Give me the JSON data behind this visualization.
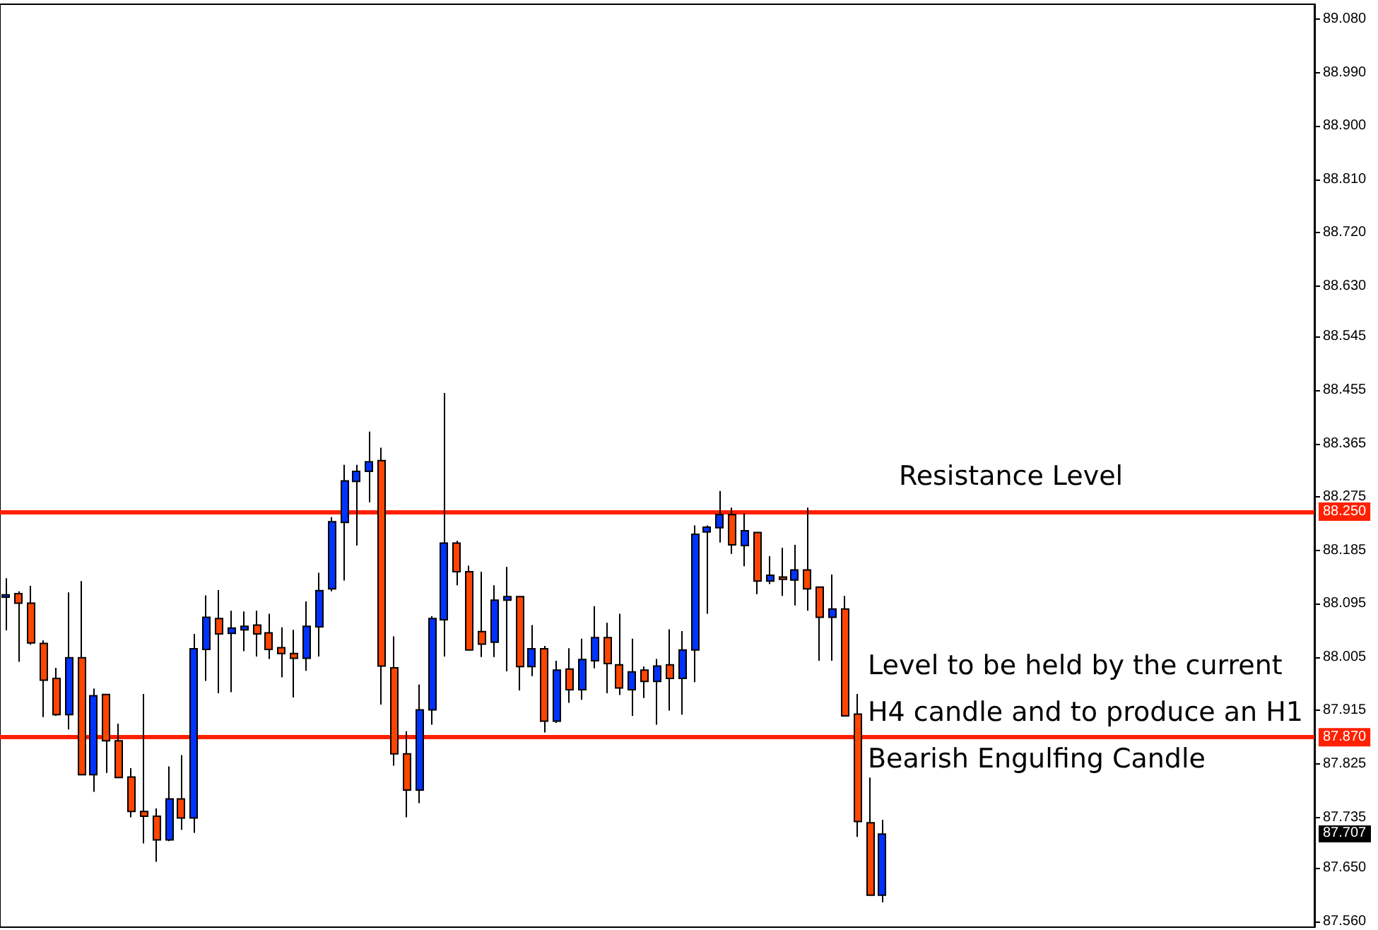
{
  "chart_data": {
    "type": "candlestick",
    "categories": [
      null,
      null,
      null,
      null,
      null,
      null,
      null,
      null,
      null,
      null,
      null,
      null,
      null,
      null,
      null,
      null,
      null,
      null,
      null,
      null,
      null,
      null,
      null,
      null,
      null,
      null,
      null,
      null,
      null,
      null,
      null,
      null,
      null,
      null,
      null,
      null,
      null,
      null,
      null,
      null,
      null,
      null,
      null,
      null,
      null,
      null,
      null,
      null,
      null,
      null,
      null,
      null,
      null,
      null,
      null,
      null,
      null,
      null,
      null,
      null,
      null,
      null,
      null,
      null,
      null,
      null,
      null,
      null,
      null,
      null,
      null,
      null,
      null,
      null,
      null,
      null,
      null,
      null,
      null,
      null,
      null,
      null,
      null,
      null,
      null,
      null,
      null,
      null,
      null,
      null,
      null,
      null,
      null,
      null,
      null,
      null,
      null,
      null,
      null,
      null,
      null,
      null,
      null,
      null,
      null
    ],
    "ohlc": [
      [
        88.106,
        88.138,
        88.05,
        88.11
      ],
      [
        88.112,
        88.116,
        87.997,
        88.096
      ],
      [
        88.096,
        88.125,
        88.026,
        88.029
      ],
      [
        88.028,
        88.033,
        87.904,
        87.966
      ],
      [
        87.969,
        87.987,
        87.906,
        87.908
      ],
      [
        87.908,
        88.114,
        87.883,
        88.004
      ],
      [
        88.004,
        88.133,
        87.807,
        87.807
      ],
      [
        87.807,
        87.952,
        87.778,
        87.94
      ],
      [
        87.942,
        87.942,
        87.81,
        87.864
      ],
      [
        87.864,
        87.893,
        87.802,
        87.802
      ],
      [
        87.803,
        87.818,
        87.735,
        87.745
      ],
      [
        87.745,
        87.943,
        87.691,
        87.737
      ],
      [
        87.737,
        87.75,
        87.66,
        87.697
      ],
      [
        87.697,
        87.821,
        87.695,
        87.766
      ],
      [
        87.766,
        87.84,
        87.714,
        87.734
      ],
      [
        87.734,
        88.044,
        87.709,
        88.019
      ],
      [
        88.018,
        88.109,
        87.965,
        88.072
      ],
      [
        88.07,
        88.118,
        87.944,
        88.044
      ],
      [
        88.045,
        88.083,
        87.946,
        88.054
      ],
      [
        88.051,
        88.082,
        88.015,
        88.057
      ],
      [
        88.059,
        88.083,
        88.006,
        88.044
      ],
      [
        88.046,
        88.078,
        88.002,
        88.018
      ],
      [
        88.021,
        88.055,
        87.971,
        88.011
      ],
      [
        88.011,
        88.051,
        87.937,
        88.003
      ],
      [
        88.003,
        88.099,
        87.982,
        88.057
      ],
      [
        88.056,
        88.147,
        88.006,
        88.117
      ],
      [
        88.12,
        88.241,
        88.116,
        88.233
      ],
      [
        88.232,
        88.329,
        88.134,
        88.302
      ],
      [
        88.301,
        88.329,
        88.193,
        88.318
      ],
      [
        88.318,
        88.385,
        88.266,
        88.334
      ],
      [
        88.336,
        88.358,
        87.925,
        87.99
      ],
      [
        87.987,
        88.04,
        87.822,
        87.842
      ],
      [
        87.842,
        87.88,
        87.735,
        87.781
      ],
      [
        87.781,
        87.959,
        87.759,
        87.916
      ],
      [
        87.916,
        88.074,
        87.891,
        88.07
      ],
      [
        88.068,
        88.45,
        88.006,
        88.197
      ],
      [
        88.197,
        88.201,
        88.126,
        88.149
      ],
      [
        88.149,
        88.159,
        88.017,
        88.017
      ],
      [
        88.048,
        88.149,
        88.005,
        88.027
      ],
      [
        88.03,
        88.126,
        88.005,
        88.101
      ],
      [
        88.101,
        88.157,
        87.981,
        88.107
      ],
      [
        88.107,
        88.107,
        87.949,
        87.989
      ],
      [
        87.989,
        88.059,
        87.973,
        88.019
      ],
      [
        88.019,
        88.024,
        87.878,
        87.897
      ],
      [
        87.897,
        87.999,
        87.894,
        87.983
      ],
      [
        87.985,
        88.02,
        87.928,
        87.95
      ],
      [
        87.95,
        88.036,
        87.933,
        88.001
      ],
      [
        87.999,
        88.091,
        87.986,
        88.038
      ],
      [
        88.038,
        88.063,
        87.944,
        87.994
      ],
      [
        87.992,
        88.078,
        87.941,
        87.953
      ],
      [
        87.95,
        88.036,
        87.906,
        87.98
      ],
      [
        87.983,
        87.989,
        87.936,
        87.964
      ],
      [
        87.964,
        88.002,
        87.891,
        87.99
      ],
      [
        87.992,
        88.052,
        87.915,
        87.969
      ],
      [
        87.969,
        88.049,
        87.908,
        88.017
      ],
      [
        88.017,
        88.227,
        87.963,
        88.212
      ],
      [
        88.216,
        88.227,
        88.078,
        88.224
      ],
      [
        88.223,
        88.285,
        88.198,
        88.245
      ],
      [
        88.245,
        88.257,
        88.179,
        88.194
      ],
      [
        88.193,
        88.247,
        88.158,
        88.218
      ],
      [
        88.215,
        88.215,
        88.111,
        88.133
      ],
      [
        88.133,
        88.175,
        88.128,
        88.143
      ],
      [
        88.14,
        88.189,
        88.108,
        88.136
      ],
      [
        88.135,
        88.194,
        88.092,
        88.152
      ],
      [
        88.152,
        88.257,
        88.083,
        88.12
      ],
      [
        88.123,
        88.123,
        87.999,
        88.072
      ],
      [
        88.072,
        88.144,
        87.999,
        88.086
      ],
      [
        88.086,
        88.108,
        87.906,
        87.906
      ],
      [
        87.909,
        87.943,
        87.702,
        87.728
      ],
      [
        87.726,
        87.802,
        87.604,
        87.604
      ],
      [
        87.604,
        87.731,
        87.592,
        87.707
      ],
      null,
      null,
      null,
      null,
      null,
      null,
      null,
      null,
      null,
      null,
      null,
      null,
      null,
      null,
      null,
      null,
      null,
      null,
      null,
      null,
      null,
      null,
      null,
      null,
      null,
      null,
      null,
      null,
      null,
      null,
      null,
      null,
      null,
      null
    ],
    "colors": [
      "#0033ff",
      "#ff4500",
      "#ff4500",
      "#ff4500",
      "#ff4500",
      "#0033ff",
      "#ff4500",
      "#0033ff",
      "#ff4500",
      "#ff4500",
      "#ff4500",
      "#ff4500",
      "#ff4500",
      "#0033ff",
      "#ff4500",
      "#0033ff",
      "#0033ff",
      "#ff4500",
      "#0033ff",
      "#0033ff",
      "#ff4500",
      "#ff4500",
      "#ff4500",
      "#ff4500",
      "#0033ff",
      "#0033ff",
      "#0033ff",
      "#0033ff",
      "#0033ff",
      "#0033ff",
      "#ff4500",
      "#ff4500",
      "#ff4500",
      "#0033ff",
      "#0033ff",
      "#0033ff",
      "#ff4500",
      "#ff4500",
      "#ff4500",
      "#0033ff",
      "#0033ff",
      "#ff4500",
      "#0033ff",
      "#ff4500",
      "#0033ff",
      "#ff4500",
      "#0033ff",
      "#0033ff",
      "#ff4500",
      "#ff4500",
      "#0033ff",
      "#ff4500",
      "#0033ff",
      "#ff4500",
      "#0033ff",
      "#0033ff",
      "#0033ff",
      "#0033ff",
      "#ff4500",
      "#0033ff",
      "#ff4500",
      "#0033ff",
      "#ff4500",
      "#0033ff",
      "#ff4500",
      "#ff4500",
      "#0033ff",
      "#ff4500",
      "#ff4500",
      "#ff4500",
      "#0033ff",
      null,
      null,
      null,
      null,
      null,
      null,
      null,
      null,
      null,
      null,
      null,
      null,
      null,
      null,
      null,
      null,
      null,
      null,
      null,
      null,
      null,
      null,
      null,
      null,
      null,
      null,
      null,
      null,
      null,
      null,
      null,
      null,
      null,
      null
    ],
    "ylim": [
      87.55,
      89.105
    ],
    "yticks": [
      {
        "value": 89.08,
        "label": "89.080"
      },
      {
        "value": 88.99,
        "label": "88.990"
      },
      {
        "value": 88.9,
        "label": "88.900"
      },
      {
        "value": 88.81,
        "label": "88.810"
      },
      {
        "value": 88.72,
        "label": "88.720"
      },
      {
        "value": 88.63,
        "label": "88.630"
      },
      88.545,
      88.455,
      88.365,
      88.275,
      88.185,
      88.095,
      88.005,
      87.915,
      87.825,
      87.735,
      {
        "value": 87.65,
        "label": "87.650"
      },
      {
        "value": 87.56,
        "label": "87.560"
      }
    ],
    "tick_labels": "y",
    "ref_lines": [
      {
        "axis": "y",
        "value": 88.25,
        "label": "88.250",
        "color": "#ff2000"
      },
      {
        "axis": "y",
        "value": 87.87,
        "label": "87.870",
        "color": "#ff2000"
      }
    ],
    "annotations": [
      {
        "text": "Resistance Level",
        "y": 88.25
      },
      {
        "text": "Level to be held by the current H4 candle and to produce an H1 Bearish Engulfing Candle",
        "y": 87.87
      },
      {
        "text": "87.707",
        "y": 87.707
      }
    ]
  }
}
